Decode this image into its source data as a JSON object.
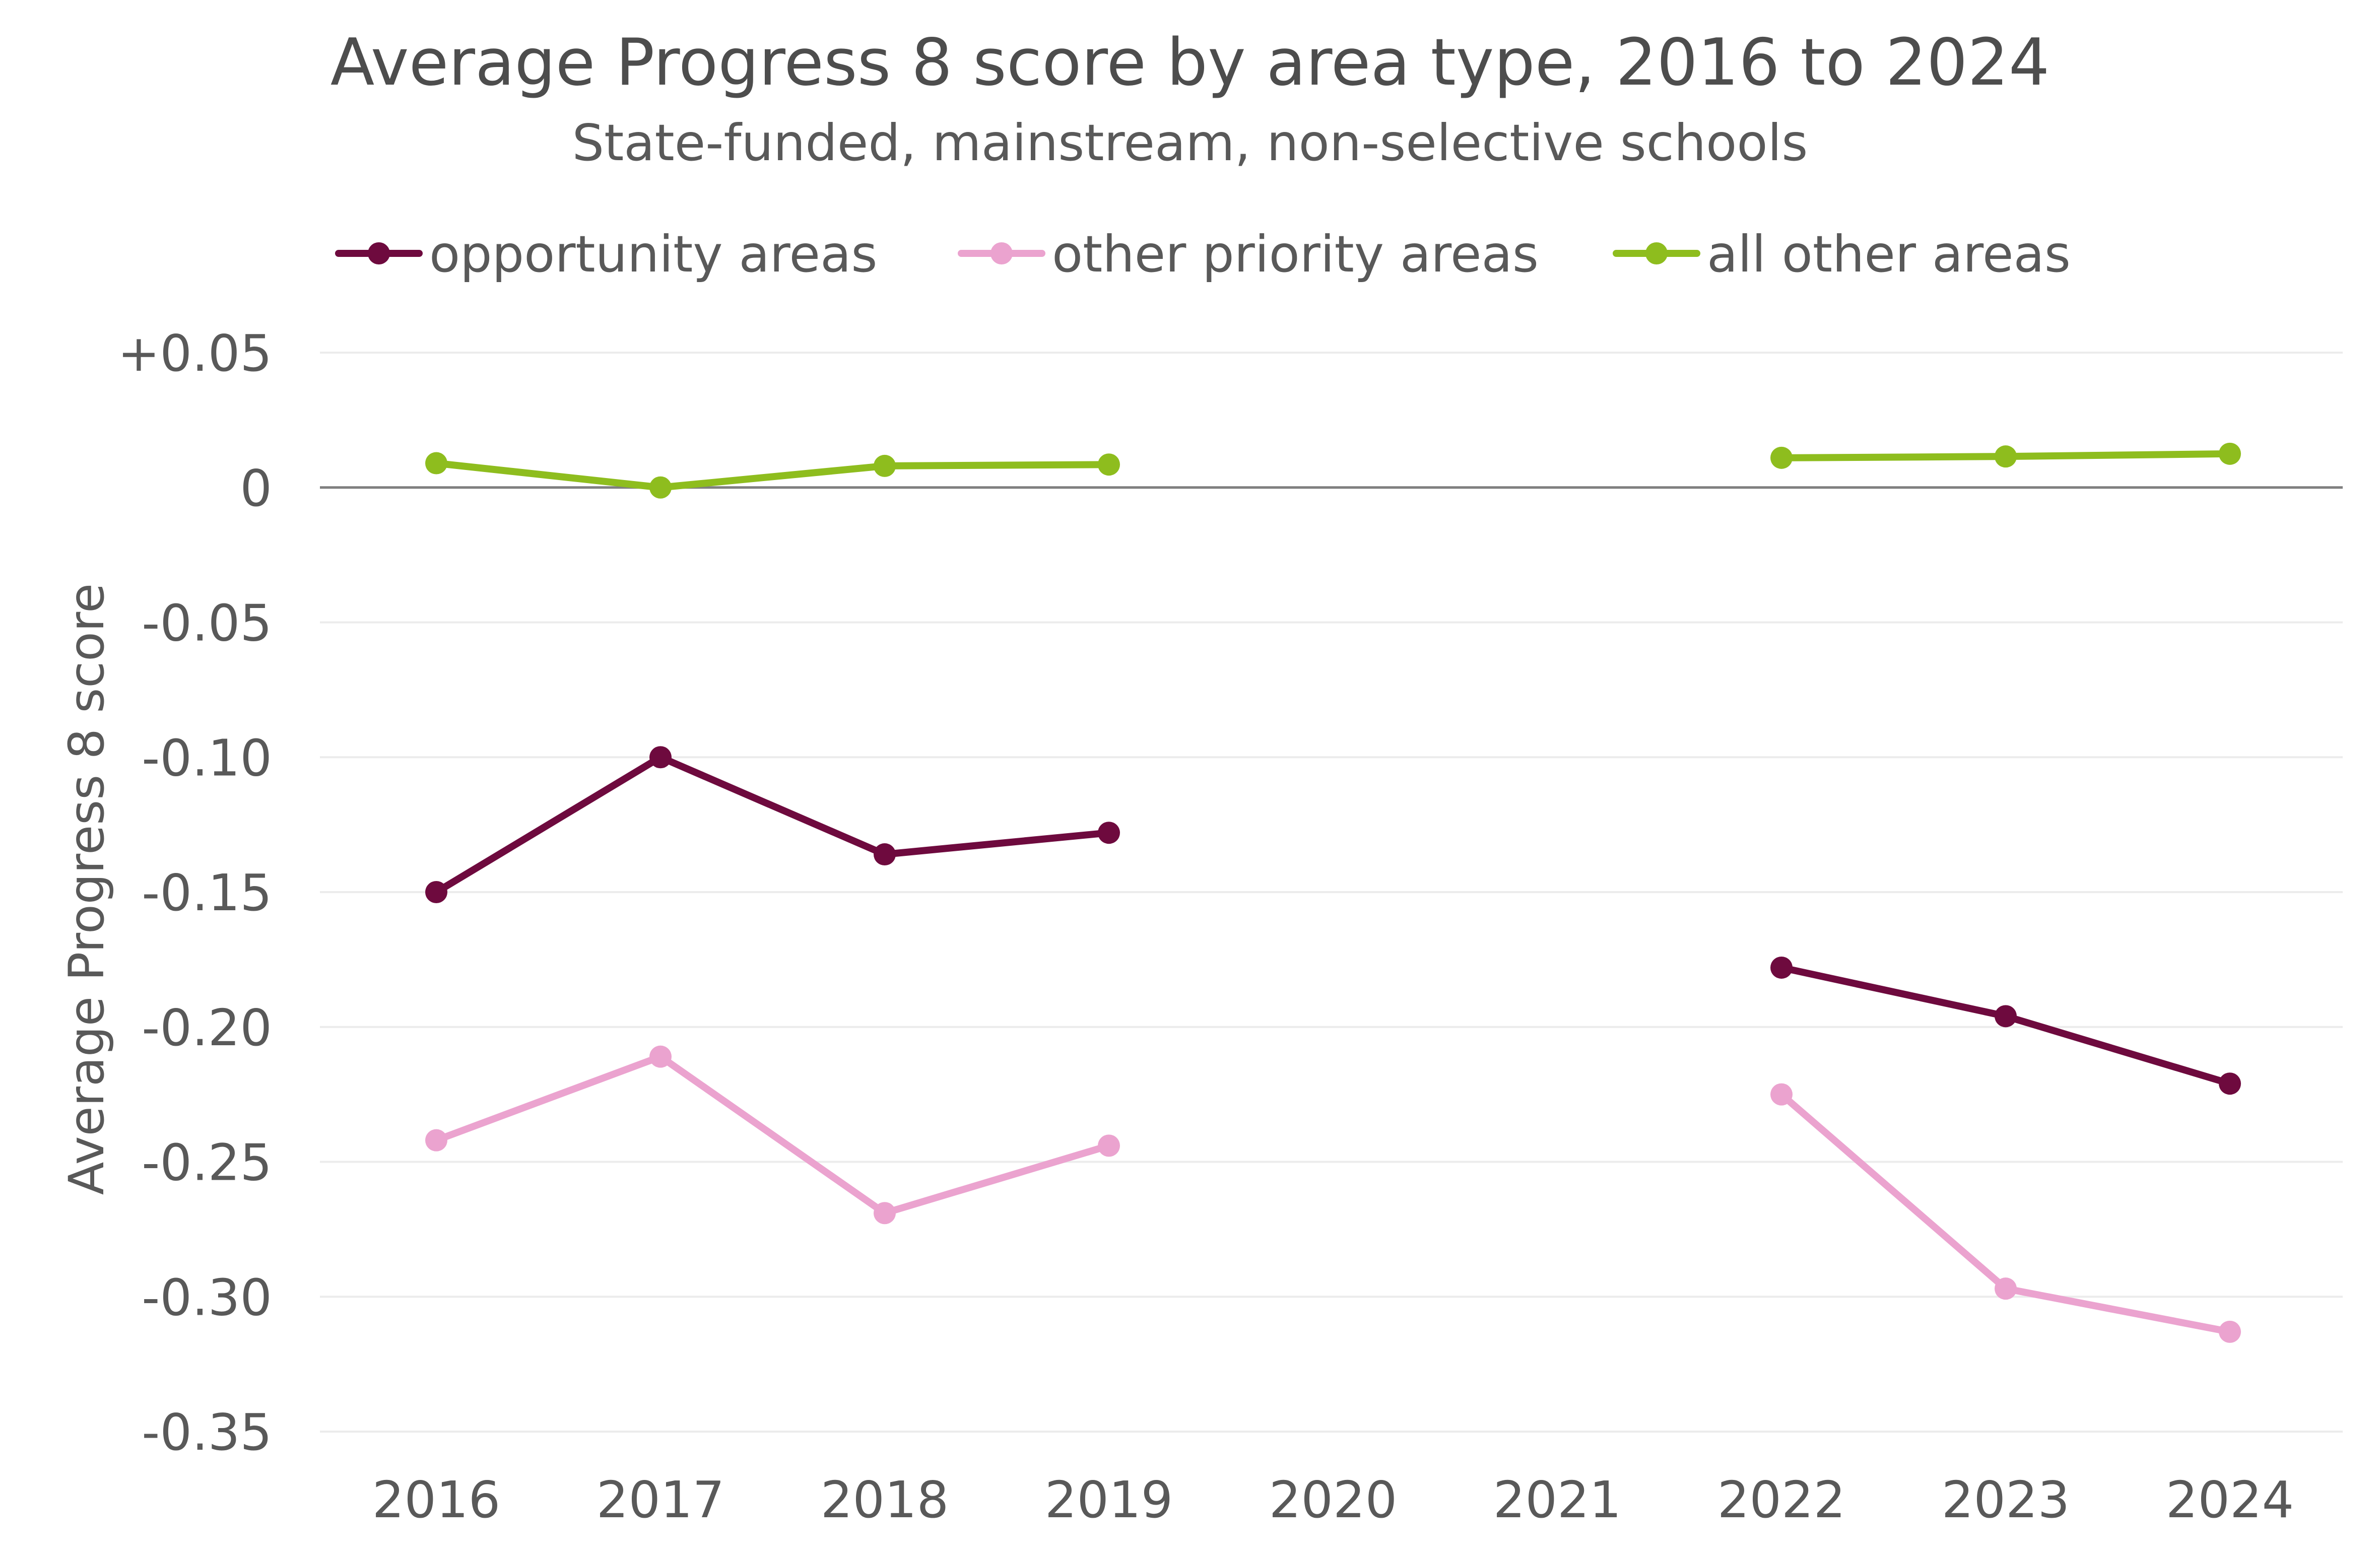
{
  "chart_data": {
    "type": "line",
    "title": "Average Progress 8 score by area type, 2016 to 2024",
    "subtitle": "State-funded, mainstream, non-selective schools",
    "xlabel": "",
    "ylabel": "Average Progress 8 score",
    "categories": [
      "2016",
      "2017",
      "2018",
      "2019",
      "2020",
      "2021",
      "2022",
      "2023",
      "2024"
    ],
    "ylim": [
      -0.35,
      0.05
    ],
    "yticks": [
      0.05,
      0,
      -0.05,
      -0.1,
      -0.15,
      -0.2,
      -0.25,
      -0.3,
      -0.35
    ],
    "ytick_labels": [
      "+0.05",
      "0",
      "-0.05",
      "-0.10",
      "-0.15",
      "-0.20",
      "-0.25",
      "-0.30",
      "-0.35"
    ],
    "grid": true,
    "legend_position": "top",
    "series": [
      {
        "name": "opportunity areas",
        "color": "#6e0a3e",
        "values": [
          -0.15,
          -0.1,
          -0.136,
          -0.128,
          null,
          null,
          -0.178,
          -0.196,
          -0.221
        ]
      },
      {
        "name": "other priority areas",
        "color": "#eba3cf",
        "values": [
          -0.242,
          -0.211,
          -0.269,
          -0.244,
          null,
          null,
          -0.225,
          -0.297,
          -0.313
        ]
      },
      {
        "name": "all other areas",
        "color": "#8ebd1e",
        "values": [
          0.009,
          0.0,
          0.008,
          0.0085,
          null,
          null,
          0.011,
          0.0115,
          0.0125
        ]
      }
    ]
  }
}
